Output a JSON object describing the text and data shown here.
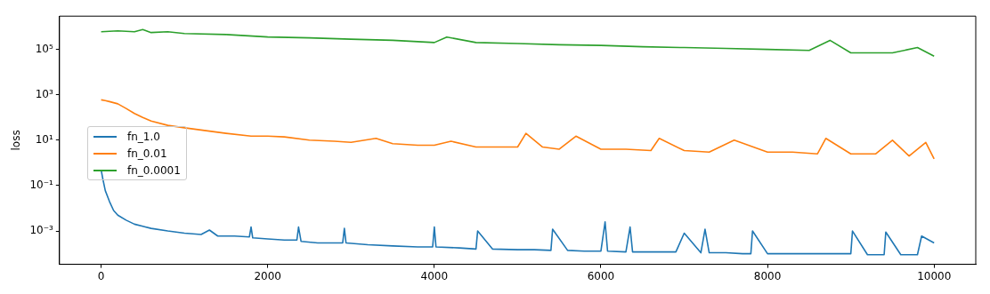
{
  "chart_data": {
    "type": "line",
    "ylabel": "loss",
    "log": "y",
    "grid": false,
    "legend": "center left",
    "xlim": [
      -500,
      10500
    ],
    "xticks": [
      0,
      2000,
      4000,
      6000,
      8000,
      10000
    ],
    "ylim": [
      3.4e-05,
      2900000
    ],
    "yticks": [
      {
        "value": 0.001,
        "label": "10⁻³"
      },
      {
        "value": 0.1,
        "label": "10⁻¹"
      },
      {
        "value": 10,
        "label": "10¹"
      },
      {
        "value": 1000,
        "label": "10³"
      },
      {
        "value": 100000,
        "label": "10⁵"
      }
    ],
    "series": [
      {
        "name": "fn_1.0",
        "color": "#1f77b4",
        "x": [
          0,
          20,
          50,
          100,
          150,
          200,
          300,
          400,
          500,
          600,
          800,
          1000,
          1200,
          1300,
          1400,
          1600,
          1780,
          1800,
          1820,
          2000,
          2200,
          2350,
          2370,
          2400,
          2600,
          2800,
          2900,
          2920,
          2940,
          3200,
          3500,
          3800,
          3980,
          4000,
          4020,
          4300,
          4500,
          4520,
          4700,
          5000,
          5200,
          5400,
          5420,
          5600,
          5800,
          6000,
          6050,
          6080,
          6300,
          6350,
          6380,
          6600,
          6900,
          7000,
          7200,
          7250,
          7300,
          7500,
          7700,
          7800,
          7820,
          8000,
          8200,
          8400,
          8600,
          8800,
          9000,
          9020,
          9200,
          9400,
          9420,
          9600,
          9800,
          9850,
          10000
        ],
        "values": [
          0.5,
          0.2,
          0.06,
          0.02,
          0.008,
          0.005,
          0.003,
          0.002,
          0.0016,
          0.0013,
          0.001,
          0.0008,
          0.0007,
          0.0011,
          0.0006,
          0.0006,
          0.00055,
          0.0015,
          0.0005,
          0.00045,
          0.0004,
          0.0004,
          0.0015,
          0.00035,
          0.0003,
          0.0003,
          0.0003,
          0.0013,
          0.0003,
          0.00025,
          0.00022,
          0.0002,
          0.0002,
          0.0015,
          0.0002,
          0.00018,
          0.00016,
          0.001,
          0.00016,
          0.00015,
          0.00015,
          0.00014,
          0.0012,
          0.00014,
          0.00013,
          0.00013,
          0.0025,
          0.00013,
          0.00012,
          0.0015,
          0.00012,
          0.00012,
          0.00012,
          0.0008,
          0.00011,
          0.0012,
          0.00011,
          0.00011,
          0.0001,
          0.0001,
          0.001,
          0.0001,
          0.0001,
          0.0001,
          0.0001,
          0.0001,
          0.0001,
          0.001,
          9e-05,
          9e-05,
          0.0009,
          9e-05,
          9e-05,
          0.0006,
          0.0003
        ]
      },
      {
        "name": "fn_0.01",
        "color": "#ff7f0e",
        "x": [
          0,
          50,
          100,
          200,
          300,
          400,
          500,
          600,
          800,
          1000,
          1200,
          1500,
          1800,
          2000,
          2200,
          2500,
          2800,
          3000,
          3300,
          3500,
          3800,
          4000,
          4200,
          4500,
          4800,
          5000,
          5100,
          5300,
          5500,
          5700,
          6000,
          6300,
          6600,
          6700,
          7000,
          7300,
          7600,
          8000,
          8300,
          8600,
          8700,
          9000,
          9300,
          9500,
          9700,
          9900,
          10000
        ],
        "values": [
          600,
          550,
          500,
          400,
          250,
          150,
          100,
          70,
          45,
          35,
          28,
          20,
          15,
          15,
          14,
          10,
          9,
          8,
          12,
          7,
          6,
          6,
          9,
          5,
          5,
          5,
          20,
          5,
          4,
          15,
          4,
          4,
          3.5,
          12,
          3.5,
          3,
          10,
          3,
          3,
          2.5,
          12,
          2.5,
          2.5,
          10,
          2,
          8,
          1.5
        ]
      },
      {
        "name": "fn_0.0001",
        "color": "#2ca02c",
        "x": [
          0,
          200,
          400,
          500,
          600,
          800,
          1000,
          1500,
          2000,
          2500,
          3000,
          3500,
          4000,
          4150,
          4500,
          5000,
          5500,
          6000,
          6500,
          7000,
          7500,
          8000,
          8500,
          8750,
          9000,
          9500,
          9800,
          10000
        ],
        "values": [
          600000,
          650000,
          600000,
          750000,
          550000,
          600000,
          500000,
          450000,
          350000,
          320000,
          280000,
          250000,
          200000,
          350000,
          200000,
          180000,
          160000,
          150000,
          130000,
          120000,
          110000,
          100000,
          90000,
          250000,
          70000,
          70000,
          120000,
          50000
        ]
      }
    ]
  }
}
